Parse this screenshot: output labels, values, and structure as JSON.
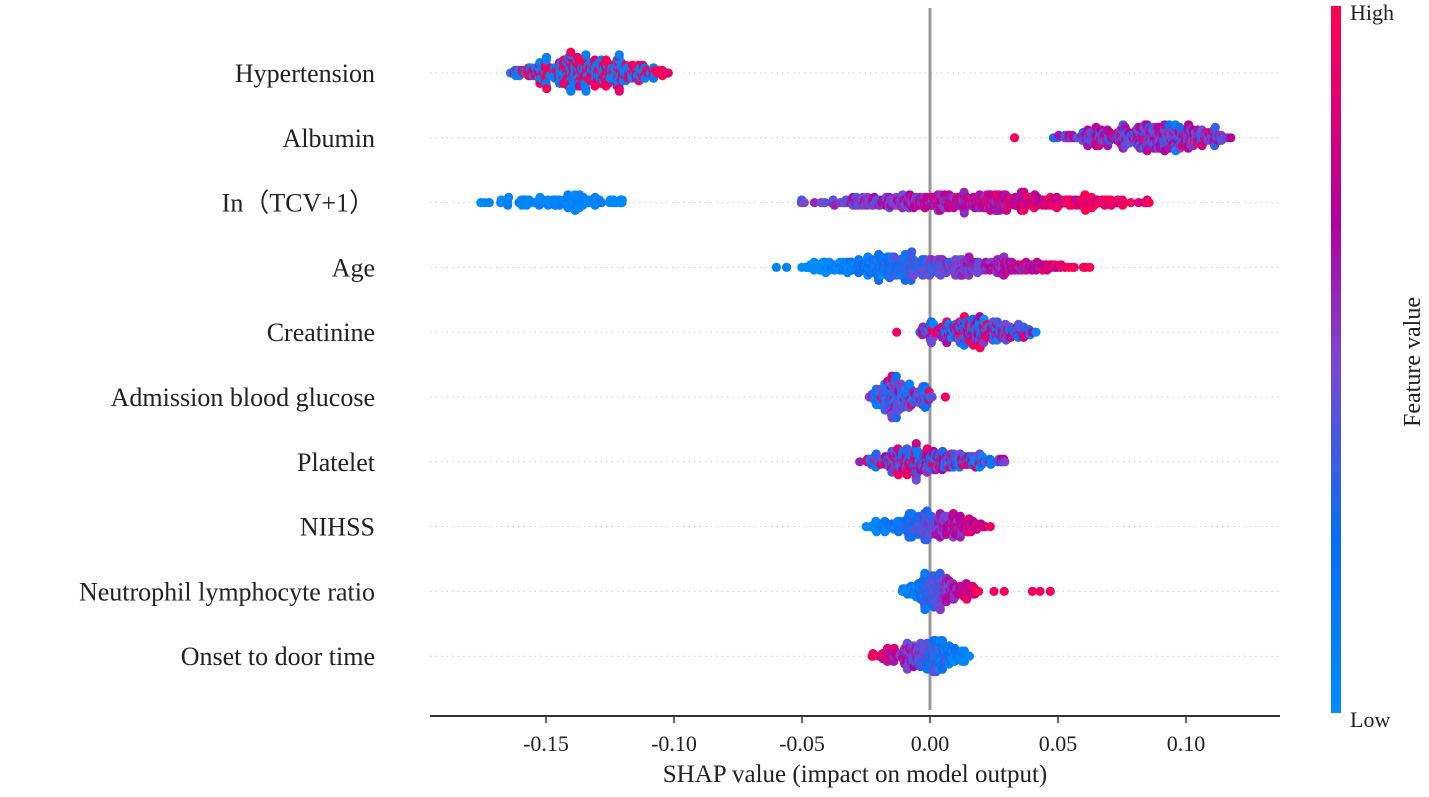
{
  "chart_data": {
    "type": "scatter",
    "subtype": "shap-beeswarm",
    "xlabel": "SHAP value (impact on model output)",
    "xlim": [
      -0.195,
      0.137
    ],
    "xticks": [
      -0.15,
      -0.1,
      -0.05,
      0.0,
      0.05,
      0.1
    ],
    "xtick_labels": [
      "-0.15",
      "-0.10",
      "-0.05",
      "0.00",
      "0.05",
      "0.10"
    ],
    "colorbar": {
      "label": "Feature value",
      "high": "High",
      "low": "Low",
      "colors": [
        "#008bfb",
        "#0a6ef0",
        "#7b46d2",
        "#b3009b",
        "#ff0052"
      ]
    },
    "features": [
      {
        "name": "Hypertension",
        "n": 420,
        "relation": "binary",
        "clusters": [
          {
            "min": -0.165,
            "max": -0.1,
            "center": -0.136,
            "share": 1
          }
        ]
      },
      {
        "name": "Albumin",
        "n": 380,
        "relation": "mixed-mid",
        "outliers": [
          0.033
        ],
        "clusters": [
          {
            "min": 0.045,
            "max": 0.121,
            "center": 0.09,
            "share": 1
          }
        ]
      },
      {
        "name": "In（TCV+1）",
        "n": 560,
        "relation": "increasing",
        "clusters": [
          {
            "min": -0.182,
            "max": -0.115,
            "center": -0.135,
            "share": 0.18,
            "value": "low"
          },
          {
            "min": -0.055,
            "max": 0.09,
            "center": 0.025,
            "share": 0.82
          }
        ]
      },
      {
        "name": "Age",
        "n": 480,
        "relation": "increasing",
        "outliers": [
          -0.06,
          -0.056
        ],
        "clusters": [
          {
            "min": -0.052,
            "max": 0.065,
            "center": -0.015,
            "share": 1
          }
        ]
      },
      {
        "name": "Creatinine",
        "n": 260,
        "relation": "mixed",
        "outliers": [
          -0.013
        ],
        "clusters": [
          {
            "min": -0.006,
            "max": 0.044,
            "center": 0.013,
            "share": 1
          }
        ]
      },
      {
        "name": "Admission blood glucose",
        "n": 200,
        "relation": "low-mostly",
        "outliers": [
          0.006
        ],
        "clusters": [
          {
            "min": -0.025,
            "max": 0.003,
            "center": -0.015,
            "share": 1
          }
        ]
      },
      {
        "name": "Platelet",
        "n": 300,
        "relation": "mixed",
        "clusters": [
          {
            "min": -0.028,
            "max": 0.034,
            "center": -0.005,
            "share": 1
          }
        ]
      },
      {
        "name": "NIHSS",
        "n": 260,
        "relation": "increasing",
        "clusters": [
          {
            "min": -0.027,
            "max": 0.026,
            "center": 0.0,
            "share": 1
          }
        ]
      },
      {
        "name": "Neutrophil lymphocyte ratio",
        "n": 220,
        "relation": "increasing",
        "outliers": [
          0.025,
          0.029,
          0.04,
          0.043,
          0.047
        ],
        "clusters": [
          {
            "min": -0.012,
            "max": 0.02,
            "center": 0.001,
            "share": 1
          }
        ]
      },
      {
        "name": "Onset to door time",
        "n": 240,
        "relation": "decreasing",
        "clusters": [
          {
            "min": -0.024,
            "max": 0.016,
            "center": 0.002,
            "share": 1
          }
        ]
      }
    ]
  }
}
